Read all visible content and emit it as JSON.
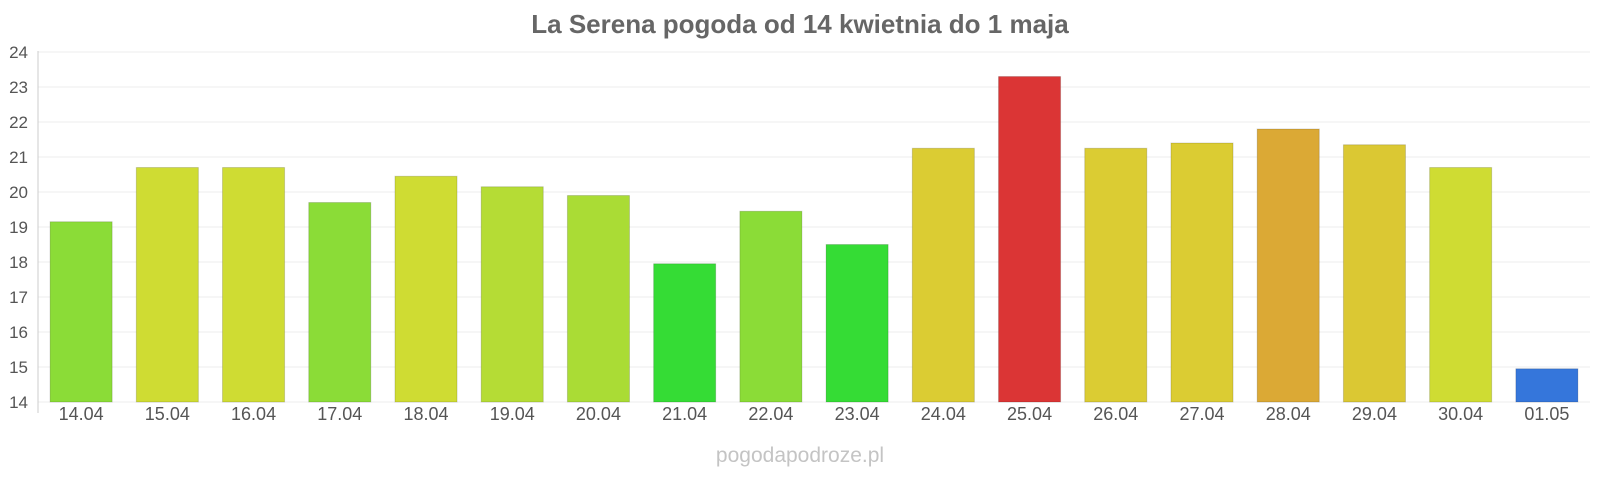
{
  "chart_data": {
    "type": "bar",
    "title": "La Serena pogoda od 14 kwietnia do 1 maja",
    "xlabel": "",
    "ylabel": "",
    "ylim": [
      14,
      24
    ],
    "yticks": [
      14,
      15,
      16,
      17,
      18,
      19,
      20,
      21,
      22,
      23,
      24
    ],
    "grid": true,
    "legend": "none",
    "categories": [
      "14.04",
      "15.04",
      "16.04",
      "17.04",
      "18.04",
      "19.04",
      "20.04",
      "21.04",
      "22.04",
      "23.04",
      "24.04",
      "25.04",
      "26.04",
      "27.04",
      "28.04",
      "29.04",
      "30.04",
      "01.05"
    ],
    "values": [
      19.15,
      20.7,
      20.7,
      19.7,
      20.45,
      20.15,
      19.9,
      17.95,
      19.45,
      18.5,
      21.25,
      23.3,
      21.25,
      21.4,
      21.8,
      21.35,
      20.7,
      14.95
    ],
    "colors": [
      "#8bdc37",
      "#cfdc33",
      "#cfdc33",
      "#8bdc37",
      "#cfdc33",
      "#b5dc35",
      "#aadc35",
      "#35dc35",
      "#8bdc37",
      "#35dc35",
      "#dbcc33",
      "#db3535",
      "#dbcc33",
      "#dbcc33",
      "#dba935",
      "#dbc833",
      "#cfdc33",
      "#3576db"
    ]
  },
  "watermark": "pogodapodroze.pl"
}
